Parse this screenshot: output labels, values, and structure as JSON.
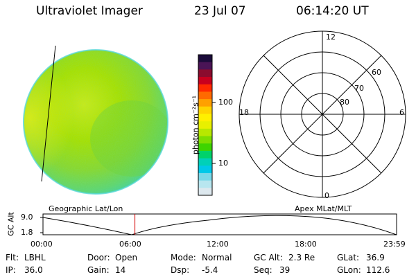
{
  "header": {
    "instrument": "Ultraviolet Imager",
    "date": "23 Jul 07",
    "time": "06:14:20 UT"
  },
  "colorbar": {
    "unit_label": "photon cm⁻²s⁻¹",
    "ticks": [
      "100",
      "10"
    ],
    "colors": [
      "#1b0b3a",
      "#4a1456",
      "#8a0c2e",
      "#c8001e",
      "#ff2a00",
      "#ff6a00",
      "#ffa000",
      "#ffd400",
      "#fff000",
      "#e8f000",
      "#b8e800",
      "#7ede00",
      "#3ed400",
      "#00d26a",
      "#00d0b8",
      "#00c8e8",
      "#7ad8e8",
      "#b8e6ef",
      "#dde8ee"
    ]
  },
  "polar_plot": {
    "labels": {
      "top": "12",
      "bottom": "0",
      "left": "18",
      "right": "6"
    },
    "lat_labels": [
      "60",
      "70",
      "80"
    ]
  },
  "timeline": {
    "left_title": "Geographic Lat/Lon",
    "right_title": "Apex MLat/MLT",
    "y_axis_label": "GC Alt",
    "y_ticks": [
      "9.0",
      "1.8"
    ],
    "x_ticks": [
      "00:00",
      "06:00",
      "12:00",
      "18:00",
      "23:59"
    ],
    "current_time_hours": 6.24
  },
  "info": {
    "row1": [
      {
        "label": "Flt:",
        "value": "LBHL"
      },
      {
        "label": "Door:",
        "value": "Open"
      },
      {
        "label": "Mode:",
        "value": "Normal"
      },
      {
        "label": "GC Alt:",
        "value": "2.3 Re"
      },
      {
        "label": "GLat:",
        "value": "36.9"
      }
    ],
    "row2": [
      {
        "label": "IP:",
        "value": "36.0"
      },
      {
        "label": "Gain:",
        "value": "14"
      },
      {
        "label": "Dsp:",
        "value": "-5.4"
      },
      {
        "label": "Seq:",
        "value": "39"
      },
      {
        "label": "GLon:",
        "value": "112.6"
      }
    ]
  },
  "colors": {
    "image_base": "#a7e000",
    "image_mid": "#8fd62a",
    "image_edge": "#3fd2b8",
    "marker": "#d40000"
  }
}
